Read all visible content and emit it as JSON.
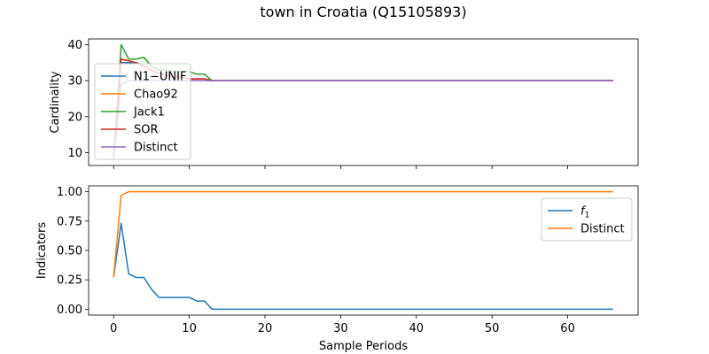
{
  "figure": {
    "title": "town in Croatia (Q15105893)"
  },
  "chart_data": [
    {
      "type": "line",
      "ylabel": "Cardinality",
      "xlabel": "",
      "xlim": [
        -3.3,
        69.3
      ],
      "ylim": [
        6.4,
        41.6
      ],
      "xticks": [
        0,
        10,
        20,
        30,
        40,
        50,
        60
      ],
      "show_xtick_labels": false,
      "yticks": [
        10,
        20,
        30,
        40
      ],
      "grid": false,
      "legend_position": "upper-left",
      "series": [
        {
          "name": "N1−UNIF",
          "color": "#1f77b4",
          "x": [
            0,
            1,
            2,
            3,
            4,
            5,
            6,
            7,
            8,
            9,
            10,
            11,
            12,
            13,
            66
          ],
          "y": [
            8,
            35,
            35,
            35,
            34,
            33,
            32,
            31.5,
            31,
            31,
            30.5,
            30.5,
            30.5,
            30,
            30
          ]
        },
        {
          "name": "Chao92",
          "color": "#ff7f0e",
          "x": [
            0,
            1,
            2,
            3,
            4,
            5,
            6,
            7,
            8,
            9,
            10,
            11,
            12,
            13,
            66
          ],
          "y": [
            8,
            36,
            35.5,
            35,
            34,
            33,
            32,
            31.5,
            31,
            31,
            30.5,
            30.5,
            30.5,
            30,
            30
          ]
        },
        {
          "name": "Jack1",
          "color": "#2ca02c",
          "x": [
            0,
            1,
            2,
            3,
            4,
            5,
            6,
            7,
            8,
            9,
            10,
            11,
            12,
            13,
            66
          ],
          "y": [
            8,
            40,
            36,
            36,
            36.5,
            34,
            33,
            33,
            32.5,
            32.5,
            32.5,
            31.8,
            31.8,
            30,
            30
          ]
        },
        {
          "name": "SOR",
          "color": "#d62728",
          "x": [
            0,
            1,
            2,
            3,
            4,
            5,
            6,
            7,
            8,
            9,
            10,
            11,
            12,
            13,
            66
          ],
          "y": [
            8,
            36,
            35.5,
            35,
            34,
            33,
            32,
            31.5,
            31,
            31,
            30.5,
            30.5,
            30.5,
            30,
            30
          ]
        },
        {
          "name": "Distinct",
          "color": "#9467bd",
          "x": [
            0,
            1,
            2,
            3,
            4,
            66
          ],
          "y": [
            8,
            29,
            30,
            30,
            30,
            30
          ]
        }
      ]
    },
    {
      "type": "line",
      "ylabel": "Indicators",
      "xlabel": "Sample Periods",
      "xlim": [
        -3.3,
        69.3
      ],
      "ylim": [
        -0.05,
        1.05
      ],
      "xticks": [
        0,
        10,
        20,
        30,
        40,
        50,
        60
      ],
      "show_xtick_labels": true,
      "yticks": [
        0.0,
        0.25,
        0.5,
        0.75,
        1.0
      ],
      "ytick_labels": [
        "0.00",
        "0.25",
        "0.50",
        "0.75",
        "1.00"
      ],
      "grid": false,
      "legend_position": "upper-right",
      "series": [
        {
          "name": "f",
          "name_subscript": "1",
          "color": "#1f77b4",
          "x": [
            0,
            1,
            2,
            3,
            4,
            5,
            6,
            7,
            8,
            9,
            10,
            11,
            12,
            13,
            66
          ],
          "y": [
            0.27,
            0.73,
            0.3,
            0.27,
            0.27,
            0.17,
            0.1,
            0.1,
            0.1,
            0.1,
            0.1,
            0.07,
            0.07,
            0.0,
            0.0
          ]
        },
        {
          "name": "Distinct",
          "color": "#ff7f0e",
          "x": [
            0,
            1,
            2,
            3,
            66
          ],
          "y": [
            0.27,
            0.97,
            1.0,
            1.0,
            1.0
          ]
        }
      ]
    }
  ]
}
